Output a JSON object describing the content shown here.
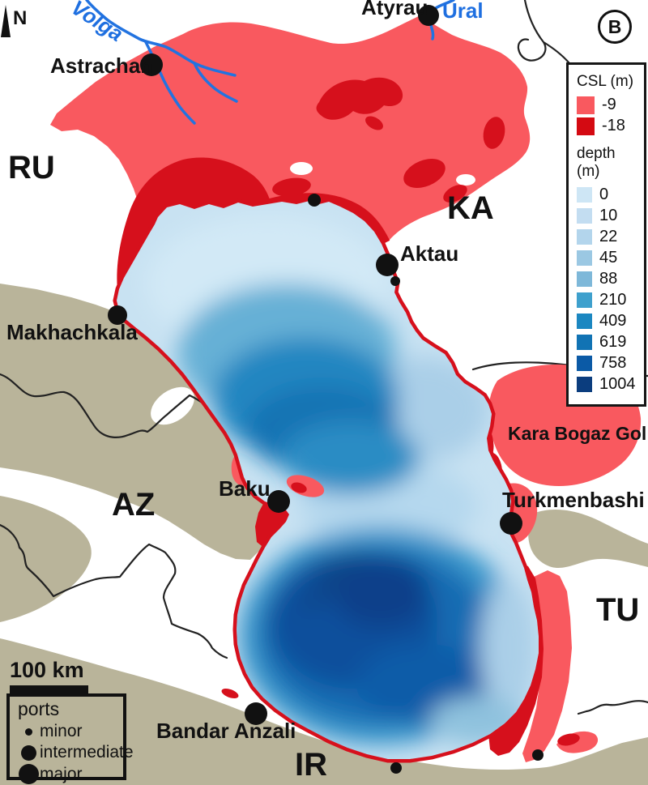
{
  "panel_label": "B",
  "compass_n": "N",
  "legend": {
    "csl_title": "CSL (m)",
    "csl_items": [
      {
        "label": "-9",
        "color": "#f9595f"
      },
      {
        "label": "-18",
        "color": "#d40a12"
      }
    ],
    "depth_title": "depth (m)",
    "depth_items": [
      {
        "label": "0",
        "color": "#cee6f5"
      },
      {
        "label": "10",
        "color": "#c3ddf1"
      },
      {
        "label": "22",
        "color": "#b3d5ec"
      },
      {
        "label": "45",
        "color": "#9bc8e3"
      },
      {
        "label": "88",
        "color": "#7eb8d9"
      },
      {
        "label": "210",
        "color": "#3ea0cd"
      },
      {
        "label": "409",
        "color": "#1b87c1"
      },
      {
        "label": "619",
        "color": "#1173b4"
      },
      {
        "label": "758",
        "color": "#0b5aa6"
      },
      {
        "label": "1004",
        "color": "#0b3d7e"
      }
    ]
  },
  "scale_bar": {
    "label": "100 km"
  },
  "ports_legend": {
    "title": "ports",
    "items": [
      {
        "label": "minor",
        "size": "minor"
      },
      {
        "label": "intermediate",
        "size": "intermediate"
      },
      {
        "label": "major",
        "size": "major"
      }
    ]
  },
  "labels": {
    "countries": {
      "ru": "RU",
      "ka": "KA",
      "az": "AZ",
      "tu": "TU",
      "ir": "IR"
    },
    "cities": {
      "astrachan": "Astrachan",
      "atyrau": "Atyrau",
      "aktau": "Aktau",
      "makhachkala": "Makhachkala",
      "baku": "Baku",
      "turkmenbashi": "Turkmenbashi",
      "bandar_anzali": "Bandar Anzali"
    },
    "rivers": {
      "volga": "Volga",
      "ural": "Ural"
    },
    "lagoon": "Kara Bogaz Gol"
  },
  "map_colors": {
    "csl_minus9": "#f9595f",
    "csl_minus18": "#d6101c",
    "land_tan": "#b9b49a",
    "river_blue": "#2273e0",
    "sea_shallow": "#c8e2f2",
    "sea_deep": "#0a4189",
    "border_black": "#222222"
  }
}
